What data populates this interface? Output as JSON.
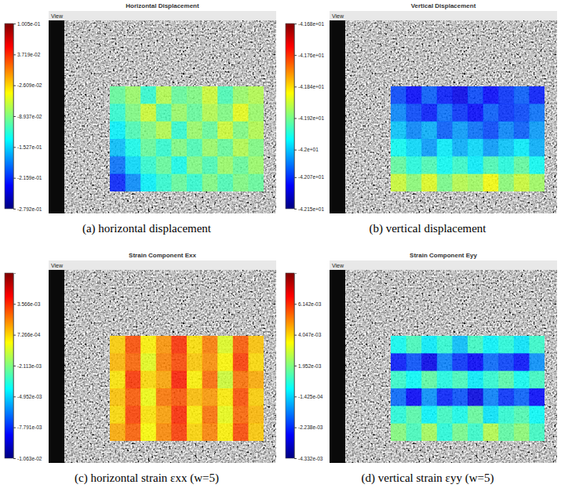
{
  "chart_data": [
    {
      "type": "heatmap",
      "title": "Horizontal Displacement",
      "view_label": "View",
      "caption": "(a) horizontal displacement",
      "colorbar": {
        "range": [
          -0.2792,
          0.1005
        ],
        "ticks": [
          {
            "value": 0.1005,
            "label": "1.005e-01"
          },
          {
            "value": 0.03719,
            "label": "3.719e-02"
          },
          {
            "value": -0.02609,
            "label": "-2.609e-02"
          },
          {
            "value": -0.08937,
            "label": "-8.937e-02"
          },
          {
            "value": -0.1527,
            "label": "-1.527e-01"
          },
          {
            "value": -0.2159,
            "label": "-2.159e-01"
          },
          {
            "value": -0.2792,
            "label": "-2.792e-01"
          }
        ]
      },
      "cells": [
        [
          -0.1,
          -0.08,
          -0.12,
          -0.07,
          -0.1,
          -0.09,
          -0.06,
          -0.11,
          -0.08,
          -0.07
        ],
        [
          -0.12,
          -0.09,
          -0.06,
          -0.11,
          -0.08,
          -0.1,
          -0.07,
          -0.09,
          -0.05,
          -0.08
        ],
        [
          -0.14,
          -0.11,
          -0.09,
          -0.07,
          -0.12,
          -0.08,
          -0.1,
          -0.06,
          -0.09,
          -0.07
        ],
        [
          -0.16,
          -0.13,
          -0.1,
          -0.12,
          -0.09,
          -0.11,
          -0.08,
          -0.1,
          -0.07,
          -0.09
        ],
        [
          -0.19,
          -0.15,
          -0.12,
          -0.1,
          -0.13,
          -0.09,
          -0.11,
          -0.08,
          -0.1,
          -0.08
        ],
        [
          -0.22,
          -0.18,
          -0.14,
          -0.12,
          -0.1,
          -0.12,
          -0.09,
          -0.11,
          -0.09,
          -0.1
        ]
      ]
    },
    {
      "type": "heatmap",
      "title": "Vertical Displacement",
      "view_label": "View",
      "caption": "(b) vertical displacement",
      "colorbar": {
        "range": [
          -42.15,
          -41.68
        ],
        "ticks": [
          {
            "value": -41.68,
            "label": "-4.168e+01"
          },
          {
            "value": -41.76,
            "label": "-4.176e+01"
          },
          {
            "value": -41.84,
            "label": "-4.184e+01"
          },
          {
            "value": -41.92,
            "label": "-4.192e+01"
          },
          {
            "value": -42.0,
            "label": "-4.2e+01"
          },
          {
            "value": -42.07,
            "label": "-4.207e+01"
          },
          {
            "value": -42.15,
            "label": "-4.215e+01"
          }
        ]
      },
      "cells": [
        [
          -42.06,
          -42.09,
          -42.05,
          -42.08,
          -42.1,
          -42.06,
          -42.09,
          -42.07,
          -42.05,
          -42.08
        ],
        [
          -42.03,
          -42.06,
          -42.08,
          -42.04,
          -42.07,
          -42.09,
          -42.05,
          -42.07,
          -42.06,
          -42.04
        ],
        [
          -42.0,
          -42.03,
          -42.01,
          -42.05,
          -42.02,
          -42.04,
          -42.06,
          -42.03,
          -42.05,
          -42.02
        ],
        [
          -41.97,
          -41.99,
          -42.02,
          -41.98,
          -42.01,
          -41.99,
          -42.02,
          -42.0,
          -41.98,
          -42.01
        ],
        [
          -41.93,
          -41.96,
          -41.94,
          -41.97,
          -41.95,
          -41.98,
          -41.94,
          -41.96,
          -41.93,
          -41.97
        ],
        [
          -41.88,
          -41.91,
          -41.87,
          -41.92,
          -41.89,
          -41.9,
          -41.86,
          -41.91,
          -41.88,
          -41.9
        ]
      ]
    },
    {
      "type": "heatmap",
      "title": "Strain Component Exx",
      "view_label": "View",
      "caption": "(c) horizontal strain εxx (w=5)",
      "colorbar": {
        "range": [
          -0.01063,
          0.006405
        ],
        "ticks": [
          {
            "value": 0.003566,
            "label": "3.566e-03"
          },
          {
            "value": 0.0007266,
            "label": "7.266e-04"
          },
          {
            "value": -0.002113,
            "label": "-2.113e-03"
          },
          {
            "value": -0.004952,
            "label": "-4.952e-03"
          },
          {
            "value": -0.007791,
            "label": "-7.791e-03"
          },
          {
            "value": -0.01063,
            "label": "-1.063e-02"
          }
        ]
      },
      "cells": [
        [
          0.0008,
          0.003,
          0.0002,
          0.0018,
          0.0035,
          0.0005,
          0.0022,
          -0.0005,
          0.0028,
          0.001
        ],
        [
          0.0012,
          0.0026,
          -0.0004,
          0.0021,
          0.0031,
          0.0009,
          0.0019,
          0.0001,
          0.0033,
          0.0006
        ],
        [
          0.0004,
          0.0034,
          0.0006,
          0.0015,
          0.0038,
          0.0002,
          0.0025,
          -0.0008,
          0.0024,
          0.0014
        ],
        [
          0.001,
          0.0028,
          -0.0002,
          0.0023,
          0.0029,
          0.0011,
          0.0017,
          0.0003,
          0.003,
          0.0008
        ],
        [
          0.0006,
          0.0032,
          0.0004,
          0.0016,
          0.0036,
          0.0003,
          0.0024,
          -0.0003,
          0.0026,
          0.0012
        ],
        [
          0.0014,
          0.0027,
          0.0,
          0.002,
          0.0033,
          0.0007,
          0.0021,
          0.0002,
          0.0031,
          0.0009
        ]
      ]
    },
    {
      "type": "heatmap",
      "title": "Strain Component Eyy",
      "view_label": "View",
      "caption": "(d)  vertical strain εyy (w=5)",
      "colorbar": {
        "range": [
          -0.004332,
          0.008237
        ],
        "ticks": [
          {
            "value": 0.006142,
            "label": "6.142e-03"
          },
          {
            "value": 0.004047,
            "label": "4.047e-03"
          },
          {
            "value": 0.001952,
            "label": "1.952e-03"
          },
          {
            "value": -0.0001425,
            "label": "-1.425e-04"
          },
          {
            "value": -0.002238,
            "label": "-2.238e-03"
          },
          {
            "value": -0.004332,
            "label": "-4.332e-03"
          }
        ]
      },
      "cells": [
        [
          0.0005,
          0.0012,
          0.0002,
          0.0009,
          -0.0004,
          0.0011,
          0.0003,
          0.0008,
          0.0001,
          0.001
        ],
        [
          -0.0025,
          -0.0018,
          -0.003,
          -0.0012,
          -0.0022,
          -0.0028,
          -0.0015,
          -0.002,
          -0.0026,
          -0.001
        ],
        [
          0.001,
          0.0004,
          0.0015,
          0.0007,
          0.0012,
          0.0002,
          0.0009,
          0.0014,
          0.0005,
          0.0011
        ],
        [
          -0.0015,
          -0.0028,
          -0.001,
          -0.0024,
          -0.0018,
          -0.0031,
          -0.0012,
          -0.0022,
          -0.0016,
          -0.0027
        ],
        [
          0.0008,
          0.0014,
          0.0003,
          0.0011,
          0.0006,
          0.0016,
          0.0001,
          0.0009,
          0.0013,
          0.0004
        ],
        [
          0.002,
          0.0012,
          0.0024,
          0.0008,
          0.0018,
          0.001,
          0.0026,
          0.0015,
          0.0021,
          0.0011
        ]
      ]
    }
  ]
}
